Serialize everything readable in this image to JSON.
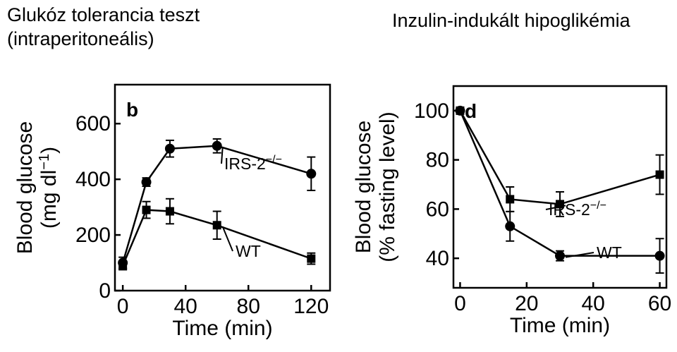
{
  "titles": {
    "left_line1": "Glukóz tolerancia teszt",
    "left_line2": "(intraperitoneális)",
    "right": "Inzulin-indukált hipoglikémia"
  },
  "chart_data": [
    {
      "type": "line",
      "panel": "b",
      "xlabel": "Time (min)",
      "ylabel_line1": "Blood glucose",
      "ylabel_line2": "(mg dl",
      "ylabel_sup": "−1",
      "ylabel_close": ")",
      "xlim": [
        -5,
        132
      ],
      "ylim": [
        0,
        740
      ],
      "xticks": [
        0,
        40,
        80,
        120
      ],
      "yticks": [
        0,
        200,
        400,
        600
      ],
      "series": [
        {
          "name": "IRS-2",
          "name_sup": "−/−",
          "x": [
            0,
            15,
            30,
            60,
            120
          ],
          "y": [
            100,
            390,
            510,
            520,
            420
          ],
          "err": [
            20,
            15,
            30,
            25,
            60
          ],
          "marker": "circle"
        },
        {
          "name": "WT",
          "x": [
            0,
            15,
            30,
            60,
            120
          ],
          "y": [
            90,
            290,
            285,
            235,
            115
          ],
          "err": [
            15,
            30,
            45,
            50,
            20
          ],
          "marker": "square"
        }
      ]
    },
    {
      "type": "line",
      "panel": "d",
      "xlabel": "Time (min)",
      "ylabel_line1": "Blood glucose",
      "ylabel_line2": "(% fasting level)",
      "xlim": [
        -2,
        62
      ],
      "ylim": [
        28,
        110
      ],
      "xticks": [
        0,
        20,
        40,
        60
      ],
      "yticks": [
        40,
        60,
        80,
        100
      ],
      "series": [
        {
          "name": "IRS-2",
          "name_sup": "−/−",
          "x": [
            0,
            15,
            30,
            60
          ],
          "y": [
            100,
            64,
            62,
            74
          ],
          "err": [
            0,
            5,
            5,
            8
          ],
          "marker": "square"
        },
        {
          "name": "WT",
          "x": [
            0,
            15,
            30,
            60
          ],
          "y": [
            100,
            53,
            41,
            41
          ],
          "err": [
            0,
            6,
            2,
            7
          ],
          "marker": "circle"
        }
      ]
    }
  ]
}
